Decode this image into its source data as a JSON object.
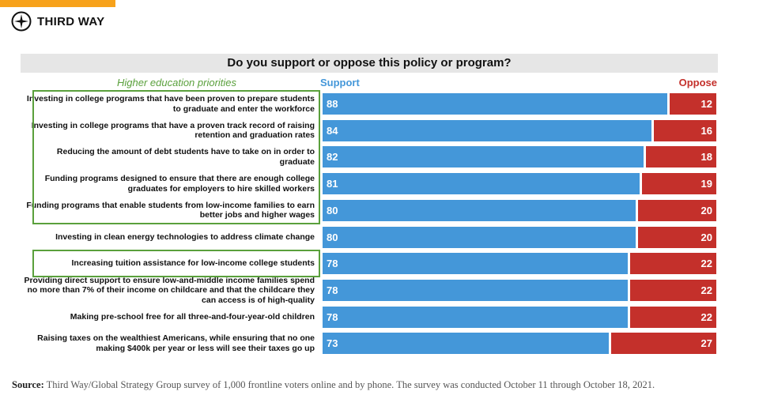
{
  "logo": {
    "text": "THIRD WAY"
  },
  "colors": {
    "support": "#4497d9",
    "oppose": "#c4302b",
    "highlight": "#5aa03c",
    "accent": "#f7a21b"
  },
  "chart_data": {
    "type": "bar",
    "stacked": true,
    "orientation": "horizontal",
    "title": "Do you support or oppose this policy or program?",
    "category_header": "Higher education priorities",
    "categories": [
      "Investing in college programs that have been proven to prepare students to graduate and enter the workforce",
      "Investing in college programs that have a proven track record of raising retention and graduation rates",
      "Reducing the amount of debt students have to take on in order to graduate",
      "Funding programs designed to ensure that there are enough college graduates for employers to hire skilled workers",
      "Funding programs that enable students from low-income families to earn better jobs and higher wages",
      "Investing in clean energy technologies to address climate change",
      "Increasing tuition assistance for low-income college students",
      "Providing direct support to ensure low-and-middle income families spend no more than 7% of their income on childcare and that the childcare they can access is of high-quality",
      "Making pre-school free for all three-and-four-year-old children",
      "Raising taxes on the wealthiest Americans, while ensuring that no one making $400k per year or less will see their taxes go up"
    ],
    "highlighted": [
      true,
      true,
      true,
      true,
      true,
      false,
      true,
      false,
      false,
      false
    ],
    "series": [
      {
        "name": "Support",
        "values": [
          88,
          84,
          82,
          81,
          80,
          80,
          78,
          78,
          78,
          73
        ]
      },
      {
        "name": "Oppose",
        "values": [
          12,
          16,
          18,
          19,
          20,
          20,
          22,
          22,
          22,
          27
        ]
      }
    ],
    "xlim": [
      0,
      100
    ]
  },
  "source": {
    "label": "Source:",
    "text": " Third Way/Global Strategy Group survey of 1,000 frontline voters online and by phone. The survey was conducted October 11 through October 18, 2021."
  }
}
